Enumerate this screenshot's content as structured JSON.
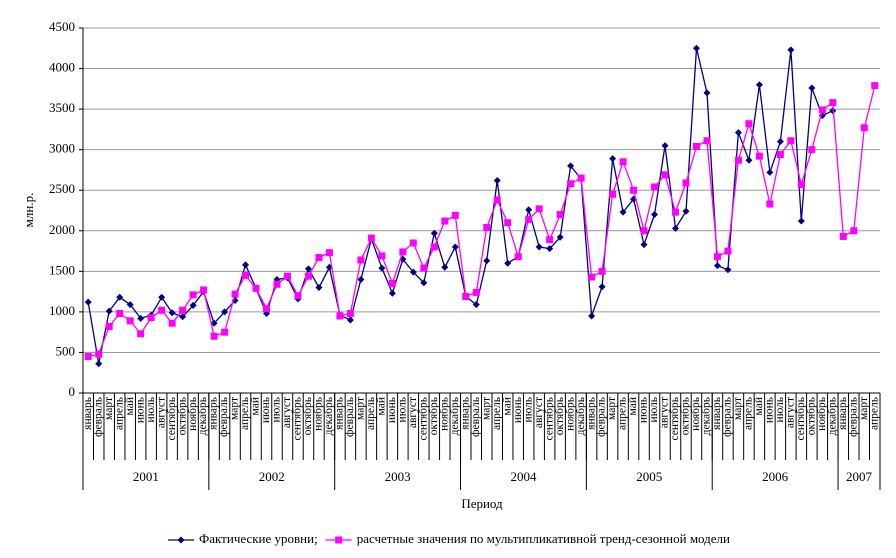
{
  "chart_data": {
    "type": "line",
    "y_label": "млн.р.",
    "x_label": "Период",
    "categories": [
      "январь",
      "февраль",
      "март",
      "апрель",
      "май",
      "июнь",
      "июль",
      "август",
      "сентябрь",
      "октябрь",
      "ноябрь",
      "декабрь",
      "январь",
      "февраль",
      "март",
      "апрель",
      "май",
      "июнь",
      "июль",
      "август",
      "сентябрь",
      "октябрь",
      "ноябрь",
      "декабрь",
      "январь",
      "февраль",
      "март",
      "апрель",
      "май",
      "июнь",
      "июль",
      "август",
      "сентябрь",
      "октябрь",
      "ноябрь",
      "декабрь",
      "январь",
      "февраль",
      "март",
      "апрель",
      "май",
      "июнь",
      "июль",
      "август",
      "сентябрь",
      "октябрь",
      "ноябрь",
      "декабрь",
      "январь",
      "февраль",
      "март",
      "апрель",
      "май",
      "июнь",
      "июль",
      "август",
      "сентябрь",
      "октябрь",
      "ноябрь",
      "декабрь",
      "январь",
      "февраль",
      "март",
      "апрель",
      "май",
      "июнь",
      "июль",
      "август",
      "сентябрь",
      "октябрь",
      "ноябрь",
      "декабрь",
      "январь",
      "февраль",
      "март",
      "апрель"
    ],
    "years": [
      "2001",
      "2002",
      "2003",
      "2004",
      "2005",
      "2006",
      "2007"
    ],
    "series": [
      {
        "name": "Фактические уровни;",
        "color": "#000080",
        "marker": "diamond",
        "values": [
          1120,
          360,
          1010,
          1180,
          1090,
          920,
          960,
          1180,
          990,
          940,
          1080,
          1250,
          860,
          1000,
          1140,
          1580,
          1290,
          980,
          1400,
          1420,
          1160,
          1530,
          1300,
          1550,
          960,
          900,
          1400,
          1900,
          1540,
          1230,
          1650,
          1490,
          1360,
          1970,
          1550,
          1800,
          1190,
          1090,
          1630,
          2620,
          1600,
          1680,
          2260,
          1800,
          1780,
          1920,
          2800,
          2640,
          950,
          1310,
          2890,
          2230,
          2390,
          1830,
          2200,
          3050,
          2030,
          2240,
          4250,
          3700,
          1570,
          1520,
          3210,
          2870,
          3800,
          2720,
          3100,
          4230,
          2120,
          3760,
          3420,
          3480,
          null,
          null,
          null,
          null
        ]
      },
      {
        "name": "расчетные значения по мультипликативной тренд-сезонной модели",
        "color": "#ff00ff",
        "marker": "square",
        "values": [
          450,
          480,
          820,
          980,
          890,
          730,
          930,
          1020,
          860,
          1020,
          1210,
          1270,
          700,
          750,
          1220,
          1450,
          1290,
          1040,
          1340,
          1440,
          1200,
          1440,
          1670,
          1730,
          950,
          980,
          1640,
          1910,
          1690,
          1350,
          1740,
          1850,
          1540,
          1800,
          2120,
          2190,
          1190,
          1240,
          2040,
          2380,
          2100,
          1680,
          2140,
          2270,
          1890,
          2200,
          2580,
          2650,
          1430,
          1500,
          2450,
          2850,
          2500,
          2000,
          2540,
          2690,
          2230,
          2590,
          3040,
          3110,
          1680,
          1750,
          2870,
          3320,
          2920,
          2330,
          2940,
          3110,
          2570,
          3000,
          3490,
          3580,
          1930,
          2000,
          3270,
          3790
        ]
      }
    ],
    "ylim": [
      0,
      4500
    ],
    "yticks": [
      0,
      500,
      1000,
      1500,
      2000,
      2500,
      3000,
      3500,
      4000,
      4500
    ],
    "grid": true,
    "legend": "bottom"
  }
}
